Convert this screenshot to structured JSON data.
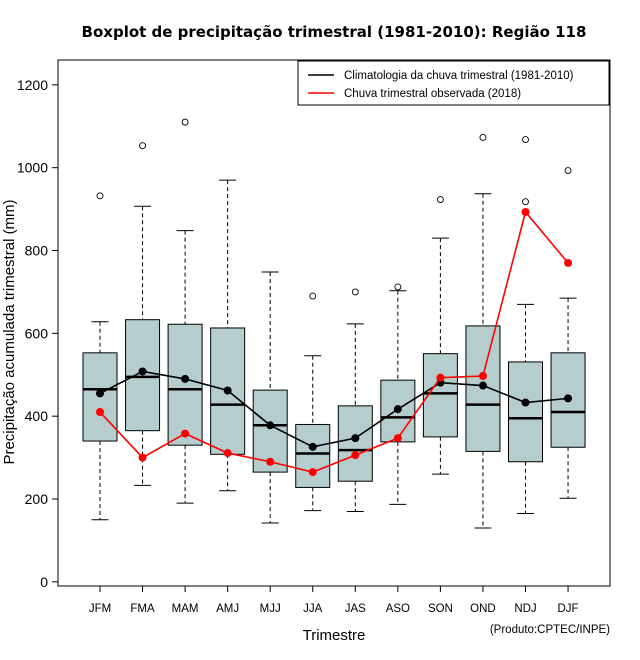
{
  "chart_data": {
    "type": "boxplot",
    "title": "Boxplot de precipitação trimestral (1981-2010): Região 118",
    "xlabel": "Trimestre",
    "ylabel": "Precipitação acumulada trimestral (mm)",
    "credit": "(Produto:CPTEC/INPE)",
    "ylim": [
      -10,
      1260
    ],
    "yticks": [
      0,
      200,
      400,
      600,
      800,
      1000,
      1200
    ],
    "categories": [
      "JFM",
      "FMA",
      "MAM",
      "AMJ",
      "MJJ",
      "JJA",
      "JAS",
      "ASO",
      "SON",
      "OND",
      "NDJ",
      "DJF"
    ],
    "boxes": [
      {
        "min": 150,
        "q1": 340,
        "median": 465,
        "q3": 553,
        "max": 628,
        "outliers": [
          932
        ]
      },
      {
        "min": 233,
        "q1": 365,
        "median": 495,
        "q3": 633,
        "max": 907,
        "outliers": [
          1053
        ]
      },
      {
        "min": 190,
        "q1": 330,
        "median": 465,
        "q3": 622,
        "max": 848,
        "outliers": [
          1110
        ]
      },
      {
        "min": 220,
        "q1": 308,
        "median": 428,
        "q3": 613,
        "max": 970,
        "outliers": []
      },
      {
        "min": 142,
        "q1": 265,
        "median": 378,
        "q3": 463,
        "max": 748,
        "outliers": []
      },
      {
        "min": 172,
        "q1": 228,
        "median": 310,
        "q3": 380,
        "max": 546,
        "outliers": [
          690
        ]
      },
      {
        "min": 170,
        "q1": 243,
        "median": 318,
        "q3": 425,
        "max": 623,
        "outliers": [
          700
        ]
      },
      {
        "min": 187,
        "q1": 338,
        "median": 397,
        "q3": 487,
        "max": 703,
        "outliers": [
          712
        ]
      },
      {
        "min": 260,
        "q1": 350,
        "median": 455,
        "q3": 551,
        "max": 830,
        "outliers": [
          923
        ]
      },
      {
        "min": 130,
        "q1": 315,
        "median": 428,
        "q3": 618,
        "max": 937,
        "outliers": [
          1073
        ]
      },
      {
        "min": 165,
        "q1": 290,
        "median": 395,
        "q3": 531,
        "max": 670,
        "outliers": [
          918,
          1068
        ]
      },
      {
        "min": 202,
        "q1": 325,
        "median": 410,
        "q3": 553,
        "max": 685,
        "outliers": [
          993
        ]
      }
    ],
    "series": [
      {
        "name": "Climatologia da chuva trimestral (1981-2010)",
        "color": "#000000",
        "values": [
          455,
          508,
          490,
          462,
          378,
          326,
          347,
          417,
          481,
          474,
          433,
          443
        ]
      },
      {
        "name": "Chuva trimestral observada (2018)",
        "color": "#ff0000",
        "values": [
          410,
          300,
          358,
          311,
          290,
          265,
          306,
          347,
          493,
          497,
          893,
          770
        ]
      }
    ],
    "legend_position": "top-right",
    "box_color": "#b5cdcd"
  }
}
